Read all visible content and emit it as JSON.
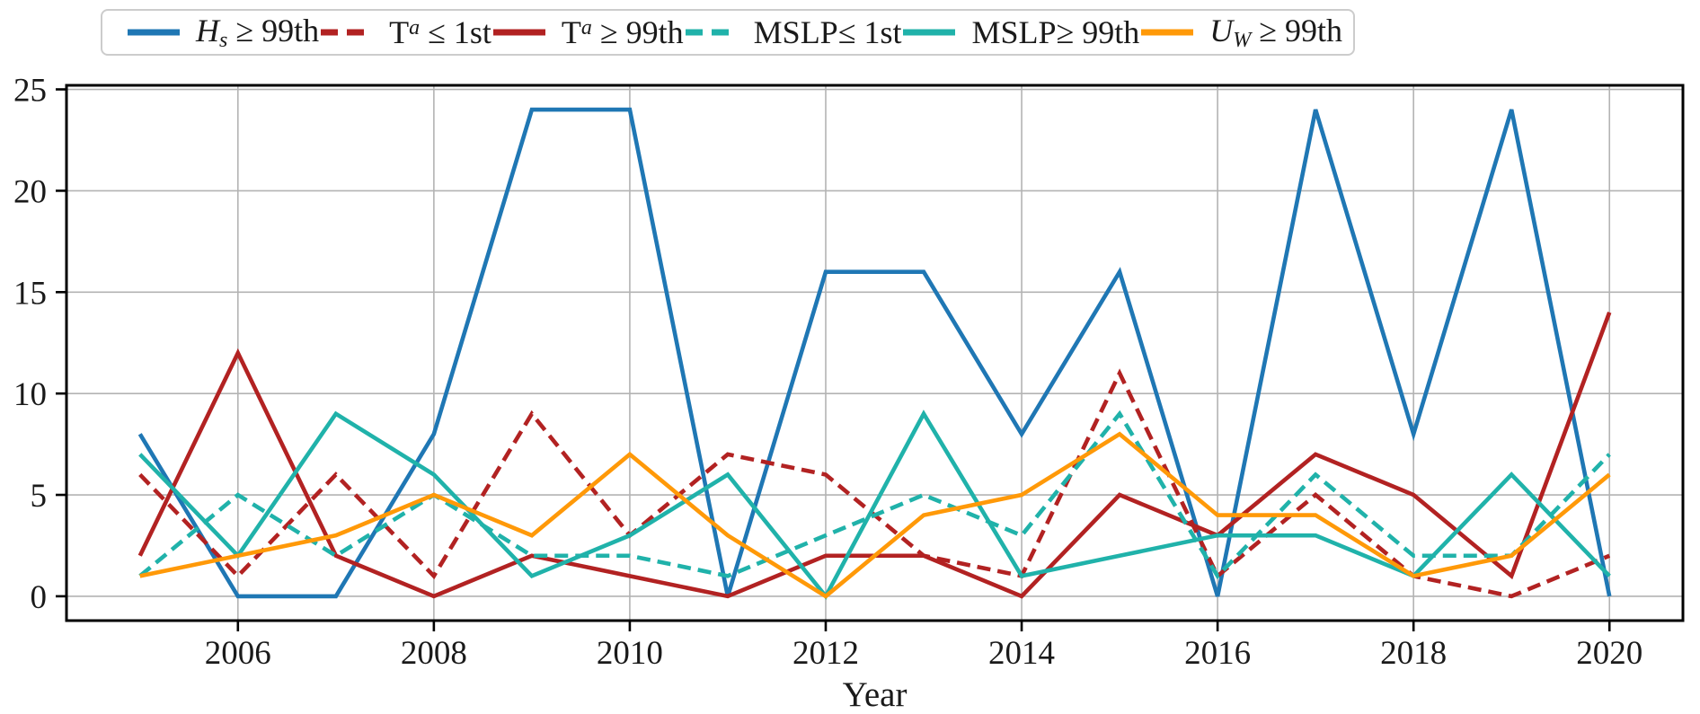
{
  "figure": {
    "xlabel": "Year"
  },
  "chart_data": {
    "type": "line",
    "title": "",
    "xlabel": "Year",
    "ylabel": "",
    "grid": true,
    "legend_position": "top",
    "xlim": [
      2004.25,
      2020.75
    ],
    "ylim": [
      -1.2,
      25.2
    ],
    "xticks": [
      2006,
      2008,
      2010,
      2012,
      2014,
      2016,
      2018,
      2020
    ],
    "yticks": [
      0,
      5,
      10,
      15,
      20,
      25
    ],
    "x": [
      2005,
      2006,
      2007,
      2008,
      2009,
      2010,
      2011,
      2012,
      2013,
      2014,
      2015,
      2016,
      2017,
      2018,
      2019,
      2020
    ],
    "series": [
      {
        "name": "Hs >= 99th",
        "color": "#1f77b4",
        "dash": false,
        "values": [
          8,
          0,
          0,
          8,
          24,
          24,
          0,
          16,
          16,
          8,
          16,
          0,
          24,
          8,
          24,
          0
        ]
      },
      {
        "name": "Ta <= 1st",
        "color": "#b22222",
        "dash": true,
        "values": [
          6,
          1,
          6,
          1,
          9,
          3,
          7,
          6,
          2,
          1,
          11,
          1,
          5,
          1,
          0,
          2
        ]
      },
      {
        "name": "Ta >= 99th",
        "color": "#b22222",
        "dash": false,
        "values": [
          2,
          12,
          2,
          0,
          2,
          1,
          0,
          2,
          2,
          0,
          5,
          3,
          7,
          5,
          1,
          14
        ]
      },
      {
        "name": "MSLP <= 1st",
        "color": "#20b2aa",
        "dash": true,
        "values": [
          1,
          5,
          2,
          5,
          2,
          2,
          1,
          3,
          5,
          3,
          9,
          1,
          6,
          2,
          2,
          7
        ]
      },
      {
        "name": "MSLP >= 99th",
        "color": "#20b2aa",
        "dash": false,
        "values": [
          7,
          2,
          9,
          6,
          1,
          3,
          6,
          0,
          9,
          1,
          2,
          3,
          3,
          1,
          6,
          1
        ]
      },
      {
        "name": "Uw >= 99th",
        "color": "#ff9908",
        "dash": false,
        "values": [
          1,
          2,
          3,
          5,
          3,
          7,
          3,
          0,
          4,
          5,
          8,
          4,
          4,
          1,
          2,
          6
        ]
      }
    ],
    "legend": [
      {
        "var": "H",
        "var_italic": true,
        "script": "s",
        "script_pos": "sub",
        "rest": " ≥ 99th"
      },
      {
        "var": "T",
        "var_italic": false,
        "script": "a",
        "script_pos": "sup",
        "rest": " ≤ 1st"
      },
      {
        "var": "T",
        "var_italic": false,
        "script": "a",
        "script_pos": "sup",
        "rest": " ≥ 99th"
      },
      {
        "var": "MSLP",
        "var_italic": false,
        "script": "",
        "script_pos": "",
        "rest": "≤ 1st"
      },
      {
        "var": "MSLP",
        "var_italic": false,
        "script": "",
        "script_pos": "",
        "rest": "≥ 99th"
      },
      {
        "var": "U",
        "var_italic": true,
        "script": "W",
        "script_pos": "sub",
        "rest": " ≥ 99th"
      }
    ],
    "colors": {
      "blue": "#1f77b4",
      "dark_red": "#b22222",
      "teal": "#20b2aa",
      "orange": "#ff9908",
      "grid": "#b3b3b3",
      "spine": "#000000"
    }
  }
}
